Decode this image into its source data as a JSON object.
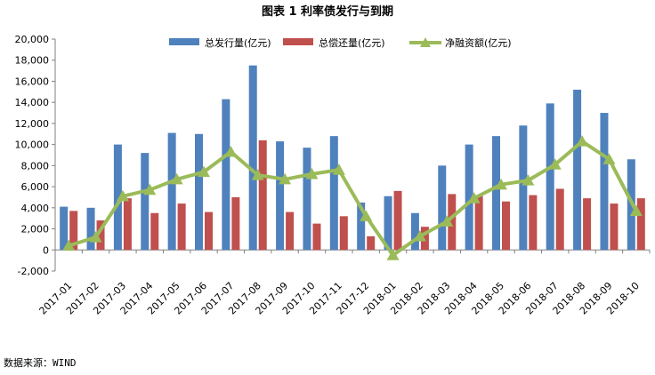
{
  "source_note": "数据来源：WIND",
  "colors": {
    "total_issuance": "#4f81bd",
    "total_repayment": "#c0504d",
    "net_financing": "#9bbb59",
    "axis": "#808080",
    "gridline": "#d9d9d9"
  },
  "chart_data": {
    "type": "bar",
    "title": "图表 1    利率债发行与到期",
    "xlabel": "",
    "ylabel": "",
    "ylim": [
      -2000,
      20000
    ],
    "yticks": [
      -2000,
      0,
      2000,
      4000,
      6000,
      8000,
      10000,
      12000,
      14000,
      16000,
      18000,
      20000
    ],
    "ytick_labels": [
      "-2,000",
      "0",
      "2,000",
      "4,000",
      "6,000",
      "8,000",
      "10,000",
      "12,000",
      "14,000",
      "16,000",
      "18,000",
      "20,000"
    ],
    "grid": false,
    "legend_position": "top",
    "categories": [
      "2017-01",
      "2017-02",
      "2017-03",
      "2017-04",
      "2017-05",
      "2017-06",
      "2017-07",
      "2017-08",
      "2017-09",
      "2017-10",
      "2017-11",
      "2017-12",
      "2018-01",
      "2018-02",
      "2018-03",
      "2018-04",
      "2018-05",
      "2018-06",
      "2018-07",
      "2018-08",
      "2018-09",
      "2018-10"
    ],
    "series": [
      {
        "name": "总发行量(亿元)",
        "type": "bar",
        "color": "#4f81bd",
        "values": [
          4100,
          4000,
          10000,
          9200,
          11100,
          11000,
          14300,
          17500,
          10300,
          9700,
          10800,
          4500,
          5100,
          3500,
          8000,
          10000,
          10800,
          11800,
          13900,
          15200,
          13000,
          8600
        ]
      },
      {
        "name": "总偿还量(亿元)",
        "type": "bar",
        "color": "#c0504d",
        "values": [
          3700,
          2800,
          4900,
          3500,
          4400,
          3600,
          5000,
          10400,
          3600,
          2500,
          3200,
          1300,
          5600,
          2200,
          5300,
          5100,
          4600,
          5200,
          5800,
          4900,
          4400,
          4900
        ]
      },
      {
        "name": "净融资额(亿元)",
        "type": "line",
        "color": "#9bbb59",
        "values": [
          400,
          1200,
          5100,
          5700,
          6700,
          7400,
          9300,
          7100,
          6700,
          7200,
          7600,
          3200,
          -500,
          1300,
          2700,
          4900,
          6200,
          6600,
          8100,
          10300,
          8600,
          3700
        ]
      }
    ]
  }
}
